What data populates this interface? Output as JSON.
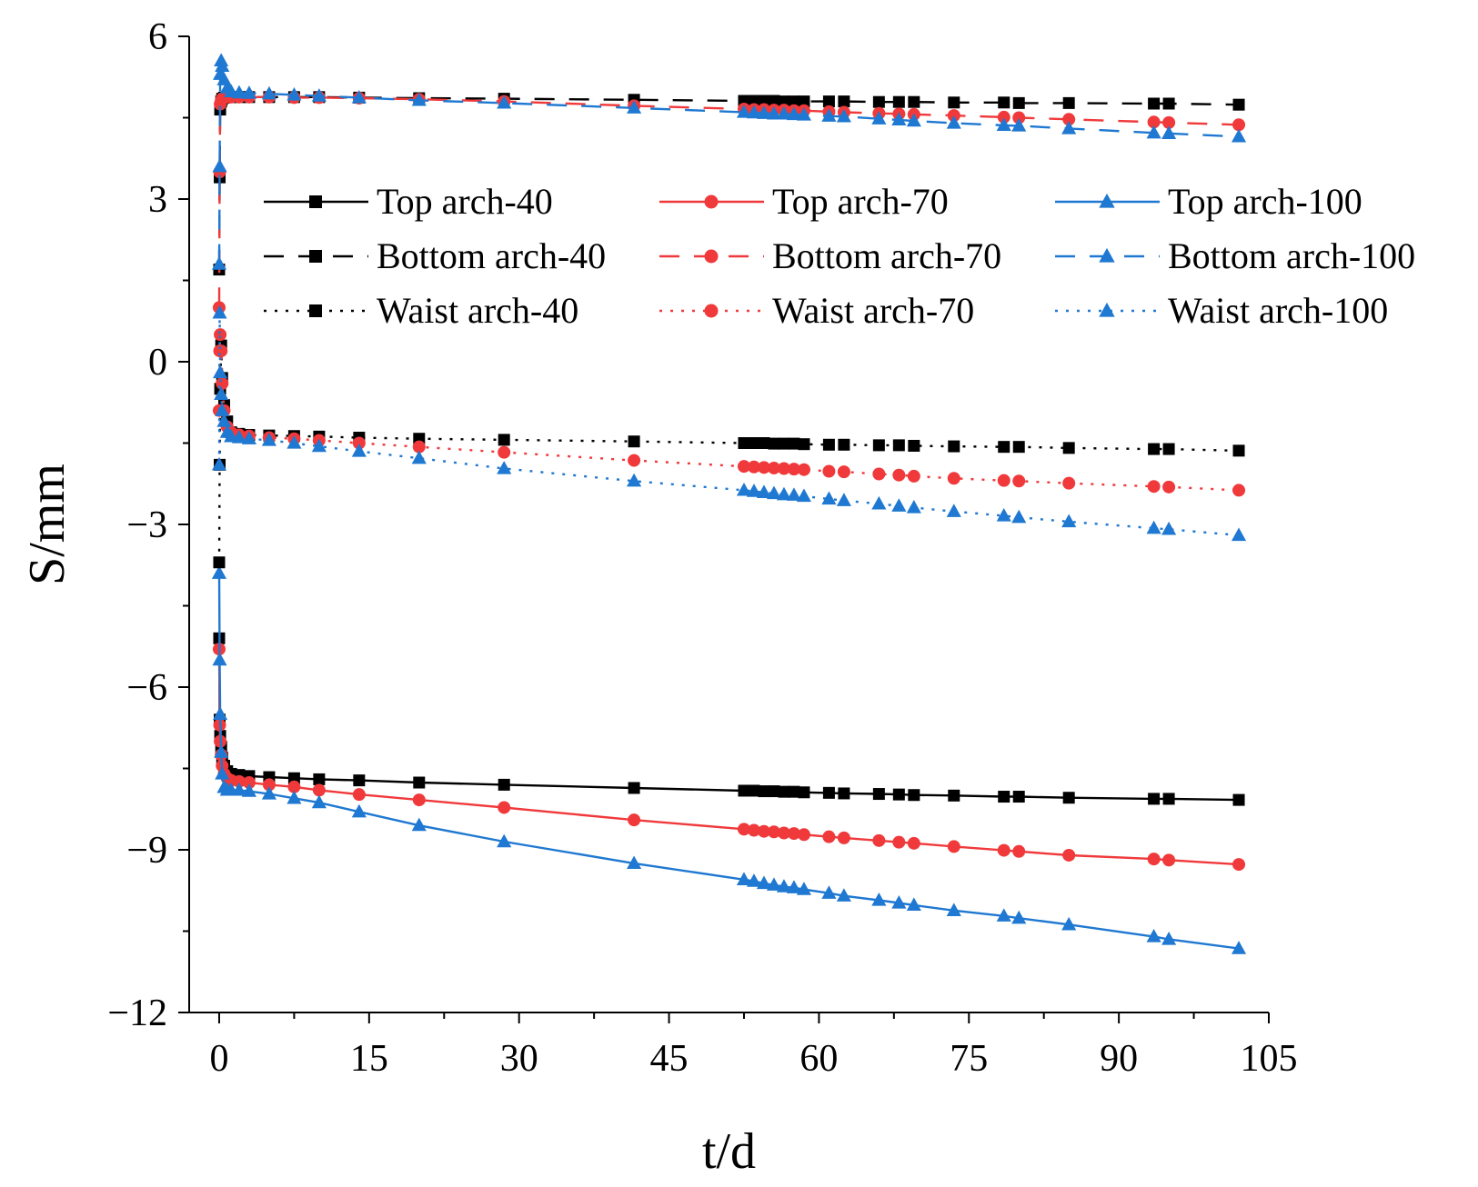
{
  "chart_data": {
    "type": "line",
    "xlabel": "t/d",
    "ylabel": "S/mm",
    "xlim": [
      -3,
      105
    ],
    "ylim": [
      -12,
      6
    ],
    "xticks": [
      0,
      15,
      30,
      45,
      60,
      75,
      90,
      105
    ],
    "yticks": [
      6,
      3,
      0,
      -3,
      -6,
      -9,
      -12
    ],
    "ytick_labels": [
      "6",
      "3",
      "0",
      "−3",
      "−6",
      "−9",
      "−12"
    ],
    "grid": false,
    "legend_position": "top (3 columns x 3 rows)",
    "series": [
      {
        "name": "Top arch-40",
        "color": "#000000",
        "marker": "square",
        "style": "solid",
        "x": [
          0,
          0.05,
          0.1,
          0.2,
          0.3,
          0.5,
          0.8,
          1.2,
          2,
          3,
          5,
          7.5,
          10,
          14,
          20,
          28.5,
          41.5,
          52.5,
          53.5,
          54.5,
          55.5,
          56.5,
          57.5,
          58.5,
          61,
          62.5,
          66,
          68,
          69.5,
          73.5,
          78.5,
          80,
          85,
          93.5,
          95,
          102
        ],
        "y": [
          -5.1,
          -6.6,
          -6.9,
          -7.1,
          -7.3,
          -7.45,
          -7.55,
          -7.6,
          -7.62,
          -7.64,
          -7.66,
          -7.68,
          -7.7,
          -7.72,
          -7.76,
          -7.8,
          -7.86,
          -7.91,
          -7.91,
          -7.92,
          -7.92,
          -7.93,
          -7.93,
          -7.94,
          -7.95,
          -7.96,
          -7.97,
          -7.98,
          -7.99,
          -8.0,
          -8.02,
          -8.02,
          -8.04,
          -8.06,
          -8.06,
          -8.08
        ]
      },
      {
        "name": "Top arch-70",
        "color": "#f0393b",
        "marker": "circle",
        "style": "solid",
        "x": [
          0,
          0.05,
          0.1,
          0.2,
          0.3,
          0.5,
          0.8,
          1.2,
          2,
          3,
          5,
          7.5,
          10,
          14,
          20,
          28.5,
          41.5,
          52.5,
          53.5,
          54.5,
          55.5,
          56.5,
          57.5,
          58.5,
          61,
          62.5,
          66,
          68,
          69.5,
          73.5,
          78.5,
          80,
          85,
          93.5,
          95,
          102
        ],
        "y": [
          -5.3,
          -6.7,
          -7.0,
          -7.25,
          -7.45,
          -7.6,
          -7.68,
          -7.72,
          -7.74,
          -7.76,
          -7.8,
          -7.84,
          -7.9,
          -7.98,
          -8.08,
          -8.22,
          -8.45,
          -8.62,
          -8.64,
          -8.66,
          -8.67,
          -8.69,
          -8.7,
          -8.72,
          -8.76,
          -8.78,
          -8.83,
          -8.86,
          -8.88,
          -8.94,
          -9.01,
          -9.03,
          -9.1,
          -9.17,
          -9.19,
          -9.27
        ]
      },
      {
        "name": "Top arch-100",
        "color": "#1f78d1",
        "marker": "triangle",
        "style": "solid",
        "x": [
          0,
          0.05,
          0.1,
          0.2,
          0.3,
          0.5,
          0.8,
          1.2,
          2,
          3,
          5,
          7.5,
          10,
          14,
          20,
          28.5,
          41.5,
          52.5,
          53.5,
          54.5,
          55.5,
          56.5,
          57.5,
          58.5,
          61,
          62.5,
          66,
          68,
          69.5,
          73.5,
          78.5,
          80,
          85,
          93.5,
          95,
          102
        ],
        "y": [
          -3.9,
          -5.5,
          -6.5,
          -7.2,
          -7.6,
          -7.85,
          -7.9,
          -7.9,
          -7.9,
          -7.92,
          -7.97,
          -8.05,
          -8.13,
          -8.3,
          -8.55,
          -8.85,
          -9.25,
          -9.55,
          -9.58,
          -9.62,
          -9.65,
          -9.68,
          -9.7,
          -9.73,
          -9.8,
          -9.85,
          -9.93,
          -9.98,
          -10.02,
          -10.12,
          -10.22,
          -10.26,
          -10.38,
          -10.6,
          -10.65,
          -10.82
        ]
      },
      {
        "name": "Bottom arch-40",
        "color": "#000000",
        "marker": "square",
        "style": "dashed",
        "x": [
          0,
          0.05,
          0.1,
          0.2,
          0.3,
          0.5,
          0.8,
          1.2,
          2,
          3,
          5,
          7.5,
          10,
          14,
          20,
          28.5,
          41.5,
          52.5,
          53.5,
          54.5,
          55.5,
          56.5,
          57.5,
          58.5,
          61,
          62.5,
          66,
          68,
          69.5,
          73.5,
          78.5,
          80,
          85,
          93.5,
          95,
          102
        ],
        "y": [
          1.7,
          3.4,
          4.65,
          4.8,
          4.85,
          4.87,
          4.88,
          4.88,
          4.88,
          4.88,
          4.88,
          4.88,
          4.88,
          4.87,
          4.86,
          4.85,
          4.83,
          4.81,
          4.81,
          4.81,
          4.81,
          4.8,
          4.8,
          4.8,
          4.8,
          4.8,
          4.79,
          4.79,
          4.79,
          4.78,
          4.78,
          4.77,
          4.77,
          4.76,
          4.76,
          4.74
        ]
      },
      {
        "name": "Bottom arch-70",
        "color": "#f0393b",
        "marker": "circle",
        "style": "dashed",
        "x": [
          0,
          0.05,
          0.1,
          0.2,
          0.3,
          0.5,
          0.8,
          1.2,
          2,
          3,
          5,
          7.5,
          10,
          14,
          20,
          28.5,
          41.5,
          52.5,
          53.5,
          54.5,
          55.5,
          56.5,
          57.5,
          58.5,
          61,
          62.5,
          66,
          68,
          69.5,
          73.5,
          78.5,
          80,
          85,
          93.5,
          95,
          102
        ],
        "y": [
          1.0,
          3.5,
          4.75,
          4.82,
          4.85,
          4.87,
          4.88,
          4.88,
          4.88,
          4.88,
          4.88,
          4.87,
          4.87,
          4.86,
          4.84,
          4.8,
          4.72,
          4.66,
          4.65,
          4.65,
          4.64,
          4.64,
          4.63,
          4.63,
          4.61,
          4.6,
          4.58,
          4.57,
          4.56,
          4.54,
          4.51,
          4.5,
          4.47,
          4.42,
          4.41,
          4.37
        ]
      },
      {
        "name": "Bottom arch-100",
        "color": "#1f78d1",
        "marker": "triangle",
        "style": "dashed",
        "x": [
          0,
          0.05,
          0.1,
          0.2,
          0.3,
          0.5,
          0.8,
          1.2,
          2,
          3,
          5,
          7.5,
          10,
          14,
          20,
          28.5,
          41.5,
          52.5,
          53.5,
          54.5,
          55.5,
          56.5,
          57.5,
          58.5,
          61,
          62.5,
          66,
          68,
          69.5,
          73.5,
          78.5,
          80,
          85,
          93.5,
          95,
          102
        ],
        "y": [
          1.8,
          3.6,
          5.3,
          5.55,
          5.45,
          5.2,
          5.05,
          4.98,
          4.96,
          4.95,
          4.94,
          4.92,
          4.9,
          4.87,
          4.82,
          4.77,
          4.68,
          4.6,
          4.59,
          4.58,
          4.57,
          4.57,
          4.56,
          4.55,
          4.53,
          4.52,
          4.48,
          4.46,
          4.44,
          4.4,
          4.36,
          4.35,
          4.3,
          4.22,
          4.21,
          4.15
        ]
      },
      {
        "name": "Waist arch-40",
        "color": "#000000",
        "marker": "square",
        "style": "dotted",
        "x": [
          0,
          0.05,
          0.1,
          0.2,
          0.3,
          0.5,
          0.8,
          1.2,
          2,
          3,
          5,
          7.5,
          10,
          14,
          20,
          28.5,
          41.5,
          52.5,
          53.5,
          54.5,
          55.5,
          56.5,
          57.5,
          58.5,
          61,
          62.5,
          66,
          68,
          69.5,
          73.5,
          78.5,
          80,
          85,
          93.5,
          95,
          102
        ],
        "y": [
          -3.7,
          -1.9,
          -0.5,
          0.3,
          -0.3,
          -0.8,
          -1.1,
          -1.3,
          -1.33,
          -1.35,
          -1.36,
          -1.37,
          -1.38,
          -1.4,
          -1.42,
          -1.44,
          -1.47,
          -1.5,
          -1.5,
          -1.5,
          -1.51,
          -1.51,
          -1.51,
          -1.52,
          -1.53,
          -1.53,
          -1.54,
          -1.54,
          -1.55,
          -1.56,
          -1.57,
          -1.57,
          -1.59,
          -1.61,
          -1.61,
          -1.64
        ]
      },
      {
        "name": "Waist arch-70",
        "color": "#f0393b",
        "marker": "circle",
        "style": "dotted",
        "x": [
          0,
          0.05,
          0.1,
          0.2,
          0.3,
          0.5,
          0.8,
          1.2,
          2,
          3,
          5,
          7.5,
          10,
          14,
          20,
          28.5,
          41.5,
          52.5,
          53.5,
          54.5,
          55.5,
          56.5,
          57.5,
          58.5,
          61,
          62.5,
          66,
          68,
          69.5,
          73.5,
          78.5,
          80,
          85,
          93.5,
          95,
          102
        ],
        "y": [
          -0.9,
          0.2,
          0.5,
          0.2,
          -0.4,
          -0.9,
          -1.2,
          -1.3,
          -1.35,
          -1.37,
          -1.4,
          -1.42,
          -1.45,
          -1.5,
          -1.57,
          -1.67,
          -1.82,
          -1.93,
          -1.94,
          -1.95,
          -1.96,
          -1.97,
          -1.98,
          -1.99,
          -2.02,
          -2.03,
          -2.07,
          -2.09,
          -2.11,
          -2.15,
          -2.19,
          -2.2,
          -2.24,
          -2.3,
          -2.31,
          -2.37
        ]
      },
      {
        "name": "Waist arch-100",
        "color": "#1f78d1",
        "marker": "triangle",
        "style": "dotted",
        "x": [
          0,
          0.05,
          0.1,
          0.2,
          0.3,
          0.5,
          0.8,
          1.2,
          2,
          3,
          5,
          7.5,
          10,
          14,
          20,
          28.5,
          41.5,
          52.5,
          53.5,
          54.5,
          55.5,
          56.5,
          57.5,
          58.5,
          61,
          62.5,
          66,
          68,
          69.5,
          73.5,
          78.5,
          80,
          85,
          93.5,
          95,
          102
        ],
        "y": [
          -1.9,
          0.9,
          -0.2,
          -0.6,
          -0.9,
          -1.1,
          -1.3,
          -1.38,
          -1.4,
          -1.42,
          -1.45,
          -1.5,
          -1.56,
          -1.65,
          -1.78,
          -1.97,
          -2.2,
          -2.37,
          -2.39,
          -2.41,
          -2.43,
          -2.45,
          -2.46,
          -2.48,
          -2.53,
          -2.56,
          -2.62,
          -2.66,
          -2.69,
          -2.76,
          -2.84,
          -2.87,
          -2.95,
          -3.07,
          -3.09,
          -3.2
        ]
      }
    ]
  }
}
